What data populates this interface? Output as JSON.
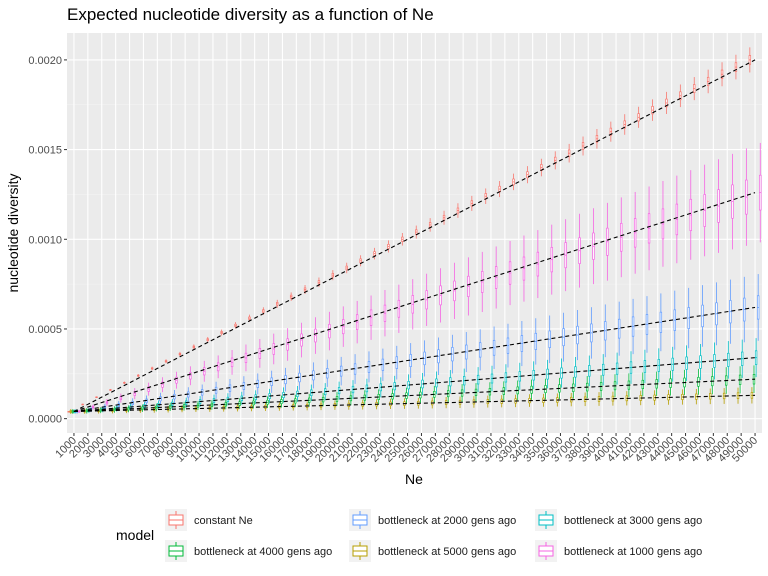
{
  "chart_data": {
    "type": "boxplot",
    "title": "Expected nucleotide diversity as a function of Ne",
    "xlabel": "Ne",
    "ylabel": "nucleotide diversity",
    "x_categories": [
      "1000",
      "2000",
      "3000",
      "4000",
      "5000",
      "6000",
      "7000",
      "8000",
      "9000",
      "10000",
      "11000",
      "12000",
      "13000",
      "14000",
      "15000",
      "16000",
      "17000",
      "18000",
      "19000",
      "20000",
      "21000",
      "22000",
      "23000",
      "24000",
      "25000",
      "26000",
      "27000",
      "28000",
      "29000",
      "30000",
      "31000",
      "32000",
      "33000",
      "34000",
      "35000",
      "36000",
      "37000",
      "38000",
      "39000",
      "40000",
      "41000",
      "42000",
      "43000",
      "44000",
      "45000",
      "46000",
      "47000",
      "48000",
      "49000",
      "50000"
    ],
    "y_ticks": [
      "0.0000",
      "0.0005",
      "0.0010",
      "0.0015",
      "0.0020"
    ],
    "y_tick_values": [
      0,
      0.0005,
      0.001,
      0.0015,
      0.002
    ],
    "ylim": [
      -8e-05,
      0.00215
    ],
    "grid": true,
    "legend_title": "model",
    "legend_position": "bottom",
    "expected_line_style": "black dashed",
    "series": [
      {
        "name": "constant Ne",
        "color": "#F8766D",
        "median_at_1000": 4e-05,
        "median_at_50000": 0.002,
        "spread_fraction": 0.035
      },
      {
        "name": "bottleneck at 5000 gens ago",
        "color": "#B79F00",
        "median_at_1000": 4e-05,
        "median_at_50000": 0.00013,
        "spread_fraction": 0.35
      },
      {
        "name": "bottleneck at 4000 gens ago",
        "color": "#00BA38",
        "median_at_1000": 4e-05,
        "median_at_50000": 0.00022,
        "spread_fraction": 0.35
      },
      {
        "name": "bottleneck at 3000 gens ago",
        "color": "#00BFC4",
        "median_at_1000": 4e-05,
        "median_at_50000": 0.00034,
        "spread_fraction": 0.32
      },
      {
        "name": "bottleneck at 2000 gens ago",
        "color": "#619CFF",
        "median_at_1000": 4e-05,
        "median_at_50000": 0.00062,
        "spread_fraction": 0.3
      },
      {
        "name": "bottleneck at 1000 gens ago",
        "color": "#F564E3",
        "median_at_1000": 4e-05,
        "median_at_50000": 0.00126,
        "spread_fraction": 0.22
      }
    ],
    "expected_lines": [
      {
        "from": 4e-05,
        "to": 0.002
      },
      {
        "from": 4e-05,
        "to": 0.00126
      },
      {
        "from": 4e-05,
        "to": 0.00062
      },
      {
        "from": 4e-05,
        "to": 0.00034
      },
      {
        "from": 4e-05,
        "to": 0.00022
      },
      {
        "from": 4e-05,
        "to": 0.00013
      }
    ],
    "legend_order": [
      0,
      2,
      4,
      1,
      3,
      5
    ]
  }
}
